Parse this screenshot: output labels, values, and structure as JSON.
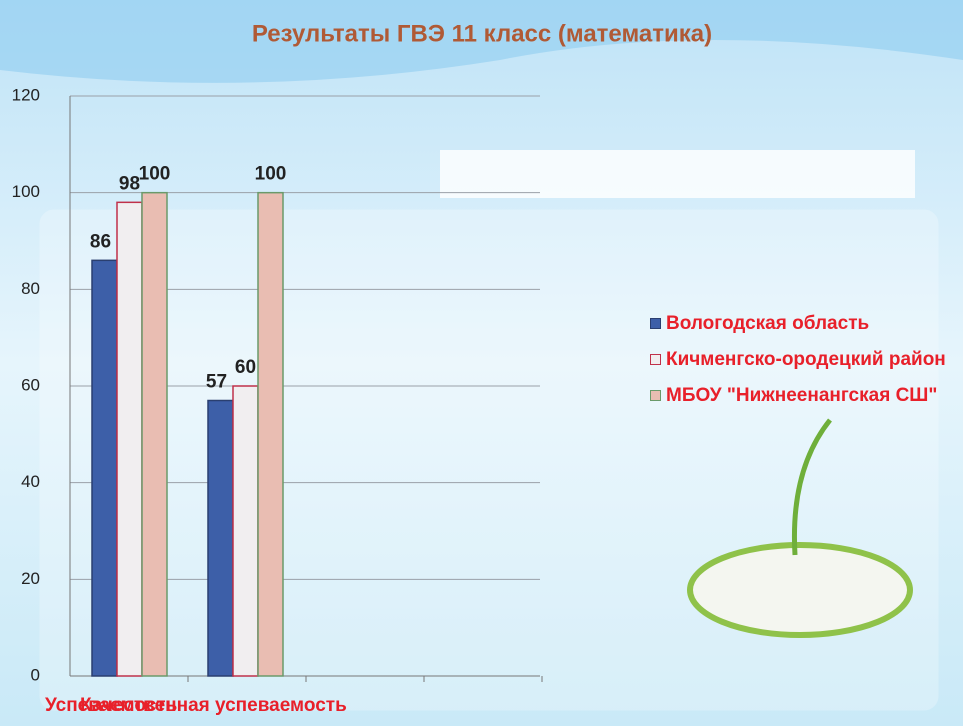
{
  "chart_data": {
    "type": "bar",
    "title": "Результаты ГВЭ 11 класс (математика)",
    "categories": [
      "Успеваемость",
      "Качественная успеваемость"
    ],
    "series": [
      {
        "name": "Вологодская область",
        "color": "#3d5fa8",
        "values": [
          86,
          57
        ]
      },
      {
        "name": "Кичменгско-ородецкий район",
        "color": "#f1eef0",
        "values": [
          98,
          60
        ]
      },
      {
        "name": "МБОУ \"Нижнеенангская СШ\"",
        "color": "#e9bdb2",
        "values": [
          100,
          100
        ]
      }
    ],
    "ylim": [
      0,
      120
    ],
    "yticks": [
      0,
      20,
      40,
      60,
      80,
      100,
      120
    ],
    "grid": true,
    "legend": "right"
  }
}
